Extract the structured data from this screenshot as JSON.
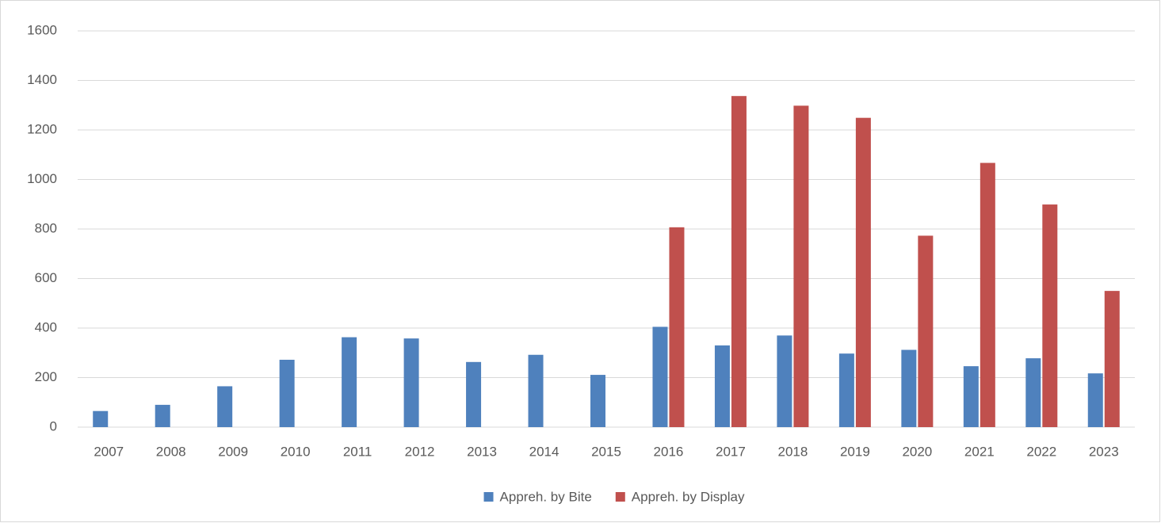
{
  "chart_data": {
    "type": "bar",
    "categories": [
      "2007",
      "2008",
      "2009",
      "2010",
      "2011",
      "2012",
      "2013",
      "2014",
      "2015",
      "2016",
      "2017",
      "2018",
      "2019",
      "2020",
      "2021",
      "2022",
      "2023"
    ],
    "series": [
      {
        "name": "Appreh. by Bite",
        "color": "#4f81bd",
        "values": [
          65,
          90,
          165,
          272,
          363,
          358,
          263,
          292,
          211,
          405,
          330,
          370,
          297,
          312,
          246,
          278,
          217
        ]
      },
      {
        "name": "Appreh. by Display",
        "color": "#c0504d",
        "values": [
          null,
          null,
          null,
          null,
          null,
          null,
          null,
          null,
          null,
          807,
          1337,
          1298,
          1249,
          773,
          1067,
          899,
          550
        ]
      }
    ],
    "ylim": [
      0,
      1600
    ],
    "yticks": [
      0,
      200,
      400,
      600,
      800,
      1000,
      1200,
      1400,
      1600
    ],
    "grid": true,
    "legend": "bottom"
  }
}
